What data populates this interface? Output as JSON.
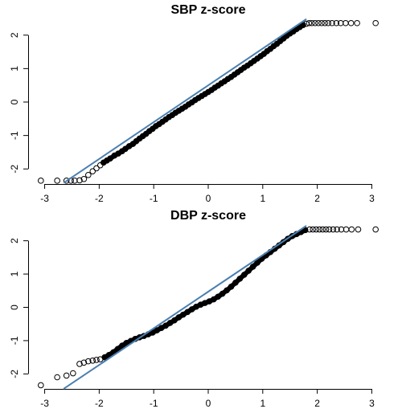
{
  "chart_data": [
    {
      "type": "scatter",
      "title": "SBP z-score",
      "xlabel": "",
      "ylabel": "",
      "xlim": [
        -3.2,
        3.2
      ],
      "ylim": [
        -2.45,
        2.45
      ],
      "x_ticks": [
        -3,
        -2,
        -1,
        0,
        1,
        2,
        3
      ],
      "x_tick_labels": [
        "-3",
        "-2",
        "-1",
        "0",
        "1",
        "2",
        "3"
      ],
      "y_ticks": [
        -2,
        -1,
        0,
        1,
        2
      ],
      "y_tick_labels": [
        "-2",
        "-1",
        "0",
        "1",
        "2"
      ],
      "reference_line": {
        "slope": 1.1,
        "intercept": 0.5,
        "color": "#4a7fb0",
        "from_x": -2.65,
        "to_x": 1.8
      },
      "series": [
        {
          "values_pairs": [
            [
              -3.07,
              -2.35
            ],
            [
              -2.77,
              -2.35
            ],
            [
              -2.6,
              -2.35
            ],
            [
              -2.52,
              -2.35
            ],
            [
              -2.45,
              -2.35
            ],
            [
              -2.36,
              -2.34
            ],
            [
              -2.28,
              -2.3
            ],
            [
              -2.2,
              -2.18
            ],
            [
              -2.12,
              -2.07
            ],
            [
              -2.05,
              -1.98
            ],
            [
              -1.98,
              -1.89
            ],
            [
              -1.92,
              -1.81
            ],
            [
              -1.86,
              -1.75
            ],
            [
              -1.8,
              -1.69
            ],
            [
              -1.72,
              -1.6
            ],
            [
              -1.65,
              -1.54
            ],
            [
              -1.58,
              -1.47
            ],
            [
              -1.52,
              -1.4
            ],
            [
              -1.45,
              -1.32
            ],
            [
              -1.38,
              -1.25
            ],
            [
              -1.32,
              -1.17
            ],
            [
              -1.26,
              -1.09
            ],
            [
              -1.2,
              -1.02
            ],
            [
              -1.14,
              -0.95
            ],
            [
              -1.08,
              -0.87
            ],
            [
              -1.02,
              -0.8
            ],
            [
              -0.96,
              -0.72
            ],
            [
              -0.9,
              -0.66
            ],
            [
              -0.84,
              -0.59
            ],
            [
              -0.78,
              -0.52
            ],
            [
              -0.72,
              -0.45
            ],
            [
              -0.66,
              -0.39
            ],
            [
              -0.6,
              -0.32
            ],
            [
              -0.54,
              -0.26
            ],
            [
              -0.48,
              -0.2
            ],
            [
              -0.42,
              -0.14
            ],
            [
              -0.36,
              -0.07
            ],
            [
              -0.3,
              -0.01
            ],
            [
              -0.24,
              0.06
            ],
            [
              -0.18,
              0.12
            ],
            [
              -0.12,
              0.18
            ],
            [
              -0.06,
              0.24
            ],
            [
              0.0,
              0.3
            ],
            [
              0.06,
              0.36
            ],
            [
              0.12,
              0.43
            ],
            [
              0.18,
              0.49
            ],
            [
              0.24,
              0.56
            ],
            [
              0.3,
              0.62
            ],
            [
              0.36,
              0.69
            ],
            [
              0.42,
              0.75
            ],
            [
              0.48,
              0.82
            ],
            [
              0.54,
              0.89
            ],
            [
              0.6,
              0.96
            ],
            [
              0.66,
              1.03
            ],
            [
              0.72,
              1.09
            ],
            [
              0.78,
              1.16
            ],
            [
              0.84,
              1.23
            ],
            [
              0.9,
              1.3
            ],
            [
              0.96,
              1.37
            ],
            [
              1.02,
              1.44
            ],
            [
              1.08,
              1.52
            ],
            [
              1.14,
              1.59
            ],
            [
              1.2,
              1.67
            ],
            [
              1.26,
              1.74
            ],
            [
              1.32,
              1.82
            ],
            [
              1.38,
              1.9
            ],
            [
              1.44,
              1.98
            ],
            [
              1.5,
              2.05
            ],
            [
              1.56,
              2.11
            ],
            [
              1.62,
              2.18
            ],
            [
              1.68,
              2.24
            ],
            [
              1.74,
              2.3
            ],
            [
              1.8,
              2.34
            ],
            [
              1.85,
              2.36
            ],
            [
              1.9,
              2.36
            ],
            [
              1.96,
              2.36
            ],
            [
              2.02,
              2.36
            ],
            [
              2.08,
              2.36
            ],
            [
              2.14,
              2.36
            ],
            [
              2.2,
              2.36
            ],
            [
              2.27,
              2.36
            ],
            [
              2.35,
              2.36
            ],
            [
              2.43,
              2.36
            ],
            [
              2.52,
              2.36
            ],
            [
              2.62,
              2.36
            ],
            [
              2.73,
              2.36
            ],
            [
              3.07,
              2.36
            ]
          ]
        }
      ]
    },
    {
      "type": "scatter",
      "title": "DBP z-score",
      "xlabel": "",
      "ylabel": "",
      "xlim": [
        -3.2,
        3.2
      ],
      "ylim": [
        -2.45,
        2.45
      ],
      "x_ticks": [
        -3,
        -2,
        -1,
        0,
        1,
        2,
        3
      ],
      "x_tick_labels": [
        "-3",
        "-2",
        "-1",
        "0",
        "1",
        "2",
        "3"
      ],
      "y_ticks": [
        -2,
        -1,
        0,
        1,
        2
      ],
      "y_tick_labels": [
        "-2",
        "-1",
        "0",
        "1",
        "2"
      ],
      "reference_line": {
        "slope": 1.1,
        "intercept": 0.47,
        "color": "#4a7fb0",
        "from_x": -2.65,
        "to_x": 1.8
      },
      "series": [
        {
          "values_pairs": [
            [
              -3.07,
              -2.34
            ],
            [
              -2.77,
              -2.1
            ],
            [
              -2.6,
              -2.05
            ],
            [
              -2.48,
              -1.98
            ],
            [
              -2.36,
              -1.7
            ],
            [
              -2.28,
              -1.66
            ],
            [
              -2.2,
              -1.62
            ],
            [
              -2.12,
              -1.6
            ],
            [
              -2.05,
              -1.58
            ],
            [
              -1.98,
              -1.56
            ],
            [
              -1.9,
              -1.5
            ],
            [
              -1.82,
              -1.43
            ],
            [
              -1.74,
              -1.35
            ],
            [
              -1.66,
              -1.25
            ],
            [
              -1.58,
              -1.15
            ],
            [
              -1.5,
              -1.07
            ],
            [
              -1.42,
              -1.01
            ],
            [
              -1.34,
              -0.95
            ],
            [
              -1.26,
              -0.9
            ],
            [
              -1.18,
              -0.86
            ],
            [
              -1.1,
              -0.81
            ],
            [
              -1.02,
              -0.76
            ],
            [
              -0.94,
              -0.69
            ],
            [
              -0.86,
              -0.62
            ],
            [
              -0.78,
              -0.55
            ],
            [
              -0.7,
              -0.47
            ],
            [
              -0.62,
              -0.39
            ],
            [
              -0.54,
              -0.3
            ],
            [
              -0.46,
              -0.22
            ],
            [
              -0.38,
              -0.14
            ],
            [
              -0.3,
              -0.06
            ],
            [
              -0.22,
              0.02
            ],
            [
              -0.14,
              0.08
            ],
            [
              -0.06,
              0.13
            ],
            [
              0.02,
              0.18
            ],
            [
              0.1,
              0.24
            ],
            [
              0.18,
              0.32
            ],
            [
              0.26,
              0.41
            ],
            [
              0.34,
              0.51
            ],
            [
              0.42,
              0.62
            ],
            [
              0.5,
              0.74
            ],
            [
              0.58,
              0.86
            ],
            [
              0.66,
              0.98
            ],
            [
              0.74,
              1.1
            ],
            [
              0.82,
              1.22
            ],
            [
              0.9,
              1.34
            ],
            [
              0.98,
              1.46
            ],
            [
              1.06,
              1.56
            ],
            [
              1.14,
              1.66
            ],
            [
              1.22,
              1.76
            ],
            [
              1.3,
              1.86
            ],
            [
              1.38,
              1.96
            ],
            [
              1.46,
              2.06
            ],
            [
              1.54,
              2.14
            ],
            [
              1.62,
              2.2
            ],
            [
              1.7,
              2.26
            ],
            [
              1.78,
              2.32
            ],
            [
              1.86,
              2.34
            ],
            [
              1.92,
              2.34
            ],
            [
              1.98,
              2.34
            ],
            [
              2.04,
              2.34
            ],
            [
              2.1,
              2.34
            ],
            [
              2.16,
              2.34
            ],
            [
              2.22,
              2.34
            ],
            [
              2.29,
              2.34
            ],
            [
              2.36,
              2.34
            ],
            [
              2.44,
              2.34
            ],
            [
              2.53,
              2.34
            ],
            [
              2.63,
              2.34
            ],
            [
              2.75,
              2.34
            ],
            [
              3.07,
              2.34
            ]
          ]
        }
      ]
    }
  ]
}
